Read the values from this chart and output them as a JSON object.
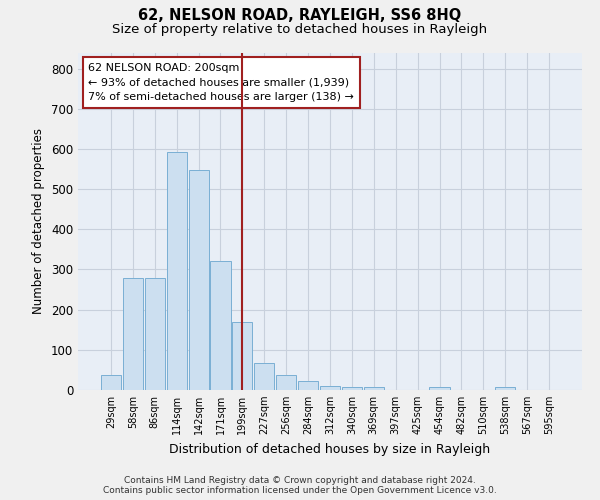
{
  "title": "62, NELSON ROAD, RAYLEIGH, SS6 8HQ",
  "subtitle": "Size of property relative to detached houses in Rayleigh",
  "xlabel": "Distribution of detached houses by size in Rayleigh",
  "ylabel": "Number of detached properties",
  "categories": [
    "29sqm",
    "58sqm",
    "86sqm",
    "114sqm",
    "142sqm",
    "171sqm",
    "199sqm",
    "227sqm",
    "256sqm",
    "284sqm",
    "312sqm",
    "340sqm",
    "369sqm",
    "397sqm",
    "425sqm",
    "454sqm",
    "482sqm",
    "510sqm",
    "538sqm",
    "567sqm",
    "595sqm"
  ],
  "values": [
    38,
    280,
    280,
    592,
    548,
    320,
    170,
    68,
    38,
    22,
    10,
    8,
    8,
    0,
    0,
    8,
    0,
    0,
    8,
    0,
    0
  ],
  "bar_color": "#ccdff0",
  "bar_edge_color": "#7aafd4",
  "bg_color": "#e8eef6",
  "grid_color": "#c8d0dc",
  "vline_x": 6,
  "vline_color": "#a02020",
  "annotation_line1": "62 NELSON ROAD: 200sqm",
  "annotation_line2": "← 93% of detached houses are smaller (1,939)",
  "annotation_line3": "7% of semi-detached houses are larger (138) →",
  "ann_box_facecolor": "#ffffff",
  "ann_box_edgecolor": "#a02020",
  "ylim": [
    0,
    840
  ],
  "yticks": [
    0,
    100,
    200,
    300,
    400,
    500,
    600,
    700,
    800
  ],
  "footnote_line1": "Contains HM Land Registry data © Crown copyright and database right 2024.",
  "footnote_line2": "Contains public sector information licensed under the Open Government Licence v3.0.",
  "fig_bg_color": "#f0f0f0"
}
